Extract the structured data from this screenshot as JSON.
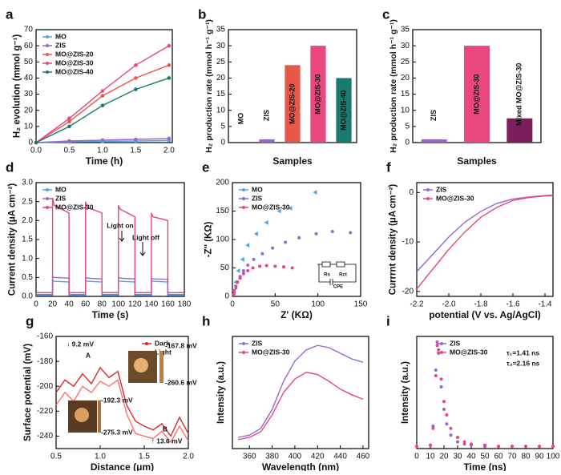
{
  "chart_data": [
    {
      "type": "line",
      "label": "a",
      "xlabel": "Time (h)",
      "ylabel": "H₂ evolution (mmol g⁻¹)",
      "markers": true,
      "legend": "upper left",
      "x": [
        0,
        0.5,
        1,
        1.5,
        2
      ],
      "xlim": [
        0,
        2.05
      ],
      "xticks": [
        {
          "value": 0,
          "label": "0.0"
        },
        0.5,
        {
          "value": 1,
          "label": "1.0"
        },
        1.5,
        {
          "value": 2,
          "label": "2.0"
        }
      ],
      "ylim": [
        0,
        70
      ],
      "yticks": [
        0,
        10,
        20,
        30,
        40,
        50,
        60,
        70
      ],
      "series": [
        {
          "name": "MO",
          "color": "#4da6e8",
          "values": [
            0,
            0.4,
            0.7,
            1,
            1.3
          ]
        },
        {
          "name": "ZIS",
          "color": "#9966cc",
          "values": [
            0,
            1,
            1.5,
            2,
            2.5
          ]
        },
        {
          "name": "MO@ZIS-20",
          "color": "#e8584a",
          "values": [
            0,
            13,
            29,
            40,
            48
          ]
        },
        {
          "name": "MO@ZIS-30",
          "color": "#e8477f",
          "values": [
            0,
            15,
            32,
            48,
            60
          ]
        },
        {
          "name": "MO@ZIS-40",
          "color": "#1a7a6e",
          "values": [
            0,
            10,
            23,
            33,
            40
          ]
        }
      ]
    },
    {
      "type": "bar",
      "label": "b",
      "xlabel": "Samples",
      "ylabel": "H₂ production rate (mmol h⁻¹ g⁻¹)",
      "categories": [
        "MO",
        "ZIS",
        "MO@ZIS-20",
        "MO@ZIS-30",
        "MO@ZIS-40"
      ],
      "values": [
        0,
        1,
        24,
        30,
        20
      ],
      "colors": [
        "#4da6e8",
        "#9966cc",
        "#e8584a",
        "#e8477f",
        "#1a7a6e"
      ],
      "ylim": [
        0,
        35
      ],
      "yticks": [
        0,
        5,
        10,
        15,
        20,
        25,
        30,
        35
      ]
    },
    {
      "type": "bar",
      "label": "c",
      "xlabel": "Samples",
      "ylabel": "H₂ production rate (mmol h⁻¹ g⁻¹)",
      "categories": [
        "ZIS",
        "MO@ZIS-30",
        "Mixed MO@ZIS-30"
      ],
      "values": [
        1,
        30,
        7.5
      ],
      "colors": [
        "#9966cc",
        "#e8477f",
        "#7a1f5c"
      ],
      "ylim": [
        0,
        35
      ],
      "yticks": [
        0,
        5,
        10,
        15,
        20,
        25,
        30,
        35
      ]
    },
    {
      "type": "line",
      "label": "d",
      "xlabel": "Time (s)",
      "ylabel": "Current density (μA cm⁻²)",
      "legend": "upper left",
      "annotations": [
        "Light on",
        "Light off"
      ],
      "x": [
        0,
        20,
        20,
        22,
        40,
        40,
        60,
        60,
        62,
        80,
        80,
        100,
        100,
        102,
        120,
        120,
        140,
        140,
        142,
        160,
        160,
        180
      ],
      "xlim": [
        0,
        180
      ],
      "xticks": [
        0,
        20,
        40,
        60,
        80,
        100,
        120,
        140,
        160,
        180
      ],
      "ylim": [
        0,
        3
      ],
      "yticks": [
        {
          "value": 0,
          "label": "0.0"
        },
        0.5,
        {
          "value": 1,
          "label": "1.0"
        },
        1.5,
        {
          "value": 2,
          "label": "2.0"
        },
        2.5,
        {
          "value": 3,
          "label": "3.0"
        }
      ],
      "series": [
        {
          "name": "MO",
          "color": "#4da6e8",
          "values": [
            0.03,
            0.03,
            0.42,
            0.4,
            0.38,
            0.03,
            0.03,
            0.42,
            0.4,
            0.38,
            0.03,
            0.03,
            0.42,
            0.4,
            0.38,
            0.03,
            0.03,
            0.42,
            0.4,
            0.38,
            0.03,
            0.03
          ]
        },
        {
          "name": "ZIS",
          "color": "#9966cc",
          "values": [
            0.05,
            0.05,
            0.52,
            0.5,
            0.48,
            0.05,
            0.05,
            0.5,
            0.48,
            0.46,
            0.05,
            0.05,
            0.5,
            0.48,
            0.46,
            0.05,
            0.05,
            0.48,
            0.46,
            0.45,
            0.05,
            0.05
          ]
        },
        {
          "name": "MO@ZIS-30",
          "color": "#e8477f",
          "values": [
            0.1,
            0.1,
            2.6,
            2.4,
            2.2,
            0.1,
            0.1,
            2.5,
            2.35,
            2.2,
            0.1,
            0.1,
            2.4,
            2.3,
            2.1,
            0.1,
            0.1,
            2.2,
            2.1,
            2.0,
            0.1,
            0.1
          ]
        }
      ]
    },
    {
      "type": "scatter",
      "label": "e",
      "xlabel": "Z' (KΩ)",
      "ylabel": "-Z'' (KΩ)",
      "legend": "upper left",
      "annotations": [
        "Rs",
        "Rct",
        "CPE"
      ],
      "xlim": [
        0,
        150
      ],
      "xticks": [
        0,
        50,
        100,
        150
      ],
      "ylim": [
        0,
        200
      ],
      "yticks": [
        0,
        50,
        100,
        150,
        200
      ],
      "series": [
        {
          "name": "MO",
          "color": "#4da6e8",
          "marker": "triangle",
          "x": [
            2,
            4,
            7,
            12,
            18,
            28,
            40,
            55,
            68,
            97
          ],
          "values": [
            10,
            25,
            45,
            65,
            90,
            110,
            130,
            150,
            155,
            183
          ]
        },
        {
          "name": "ZIS",
          "color": "#9966cc",
          "marker": "circle",
          "x": [
            2,
            4,
            6,
            9,
            13,
            18,
            25,
            35,
            47,
            62,
            78,
            98,
            117,
            138
          ],
          "values": [
            5,
            15,
            25,
            35,
            45,
            55,
            65,
            75,
            85,
            95,
            103,
            110,
            114,
            112
          ]
        },
        {
          "name": "MO@ZIS-30",
          "color": "#e8477f",
          "marker": "circle",
          "x": [
            1,
            2,
            4,
            6,
            9,
            13,
            18,
            24,
            32,
            40,
            50,
            60,
            70
          ],
          "values": [
            3,
            10,
            18,
            25,
            32,
            40,
            45,
            50,
            53,
            54,
            53,
            52,
            50
          ]
        }
      ]
    },
    {
      "type": "line",
      "label": "f",
      "xlabel": "potential (V vs. Ag/AgCl)",
      "ylabel": "Currrnt density (μA cm⁻²)",
      "legend": "upper left",
      "x": [
        -2.2,
        -2.1,
        -2.0,
        -1.9,
        -1.8,
        -1.7,
        -1.6,
        -1.5,
        -1.4,
        -1.35
      ],
      "xlim": [
        -2.2,
        -1.35
      ],
      "xticks": [
        -2.2,
        {
          "value": -2,
          "label": "-2.0"
        },
        -1.8,
        -1.6,
        -1.4
      ],
      "ylim": [
        -21,
        2
      ],
      "yticks": [
        0,
        -10,
        -20
      ],
      "series": [
        {
          "name": "ZIS",
          "color": "#9966cc",
          "values": [
            -16,
            -12.5,
            -9,
            -6,
            -3.8,
            -2.2,
            -1.3,
            -0.9,
            -0.6,
            -0.5
          ]
        },
        {
          "name": "MO@ZIS-30",
          "color": "#e8477f",
          "values": [
            -19.5,
            -15.5,
            -11.5,
            -8,
            -5,
            -3,
            -1.6,
            -1,
            -0.7,
            -0.6
          ]
        }
      ]
    },
    {
      "type": "line",
      "label": "g",
      "xlabel": "Distance (μm)",
      "ylabel": "Surface potential (mV)",
      "legend": "upper right",
      "annotations": [
        "↓ 9.2 mV",
        "A",
        "B",
        "↑ 13.6 mV",
        "-167.8 mV",
        "-260.6 mV",
        "-192.3 mV",
        "-275.3 mV"
      ],
      "x": [
        0.5,
        0.6,
        0.7,
        0.8,
        0.9,
        1.0,
        1.1,
        1.2,
        1.3,
        1.4,
        1.5,
        1.6,
        1.7,
        1.8,
        1.9,
        2.0
      ],
      "xlim": [
        0.5,
        2
      ],
      "xticks": [
        0.5,
        {
          "value": 1,
          "label": "1.0"
        },
        1.5,
        {
          "value": 2,
          "label": "2.0"
        }
      ],
      "ylim": [
        -250,
        -160
      ],
      "yticks": [
        -160,
        -180,
        -200,
        -220,
        -240
      ],
      "series": [
        {
          "name": "Dark",
          "color": "#d42a2a",
          "values": [
            -205,
            -195,
            -200,
            -190,
            -198,
            -185,
            -193,
            -188,
            -215,
            -228,
            -232,
            -235,
            -230,
            -240,
            -225,
            -238
          ]
        },
        {
          "name": "Light",
          "color": "#ff6f6f",
          "values": [
            -215,
            -205,
            -212,
            -200,
            -205,
            -196,
            -200,
            -195,
            -222,
            -238,
            -240,
            -242,
            -236,
            -245,
            -232,
            -244
          ]
        }
      ]
    },
    {
      "type": "line",
      "label": "h",
      "xlabel": "Wavelength (nm)",
      "ylabel": "Intensity (a.u.)",
      "legend": "upper left",
      "x": [
        350,
        360,
        370,
        380,
        390,
        400,
        410,
        420,
        430,
        440,
        450,
        460
      ],
      "xlim": [
        345,
        465
      ],
      "xticks": [
        360,
        380,
        400,
        420,
        440,
        460
      ],
      "ylim": [
        0,
        100
      ],
      "series": [
        {
          "name": "ZIS",
          "color": "#9966cc",
          "values": [
            10,
            12,
            18,
            35,
            60,
            78,
            88,
            92,
            90,
            85,
            80,
            77
          ]
        },
        {
          "name": "MO@ZIS-30",
          "color": "#e8477f",
          "values": [
            8,
            10,
            15,
            30,
            50,
            62,
            68,
            66,
            60,
            53,
            48,
            44
          ]
        }
      ]
    },
    {
      "type": "scatter",
      "label": "i",
      "xlabel": "Time (ns)",
      "ylabel": "Intensity (a.u.)",
      "legend": "upper right",
      "annotations": [
        "τ₁=1.41 ns",
        "τ₂=2.16 ns"
      ],
      "x": [
        0,
        10,
        12,
        14,
        15,
        16,
        18,
        20,
        22,
        25,
        30,
        35,
        40,
        50,
        60,
        70,
        80,
        90,
        100
      ],
      "xlim": [
        0,
        100
      ],
      "xticks": [
        0,
        10,
        20,
        30,
        40,
        50,
        60,
        70,
        80,
        90,
        100
      ],
      "ylim": [
        0,
        100
      ],
      "series": [
        {
          "name": "ZIS",
          "color": "#9966cc",
          "marker": "circle",
          "values": [
            2,
            3,
            20,
            70,
            95,
            85,
            55,
            35,
            22,
            12,
            6,
            4,
            3,
            2,
            2,
            2,
            2,
            2,
            2
          ]
        },
        {
          "name": "MO@ZIS-30",
          "color": "#e8477f",
          "marker": "circle",
          "values": [
            2,
            3,
            18,
            65,
            92,
            88,
            62,
            42,
            30,
            18,
            10,
            6,
            4,
            3,
            2,
            2,
            2,
            2,
            2
          ]
        }
      ]
    }
  ]
}
